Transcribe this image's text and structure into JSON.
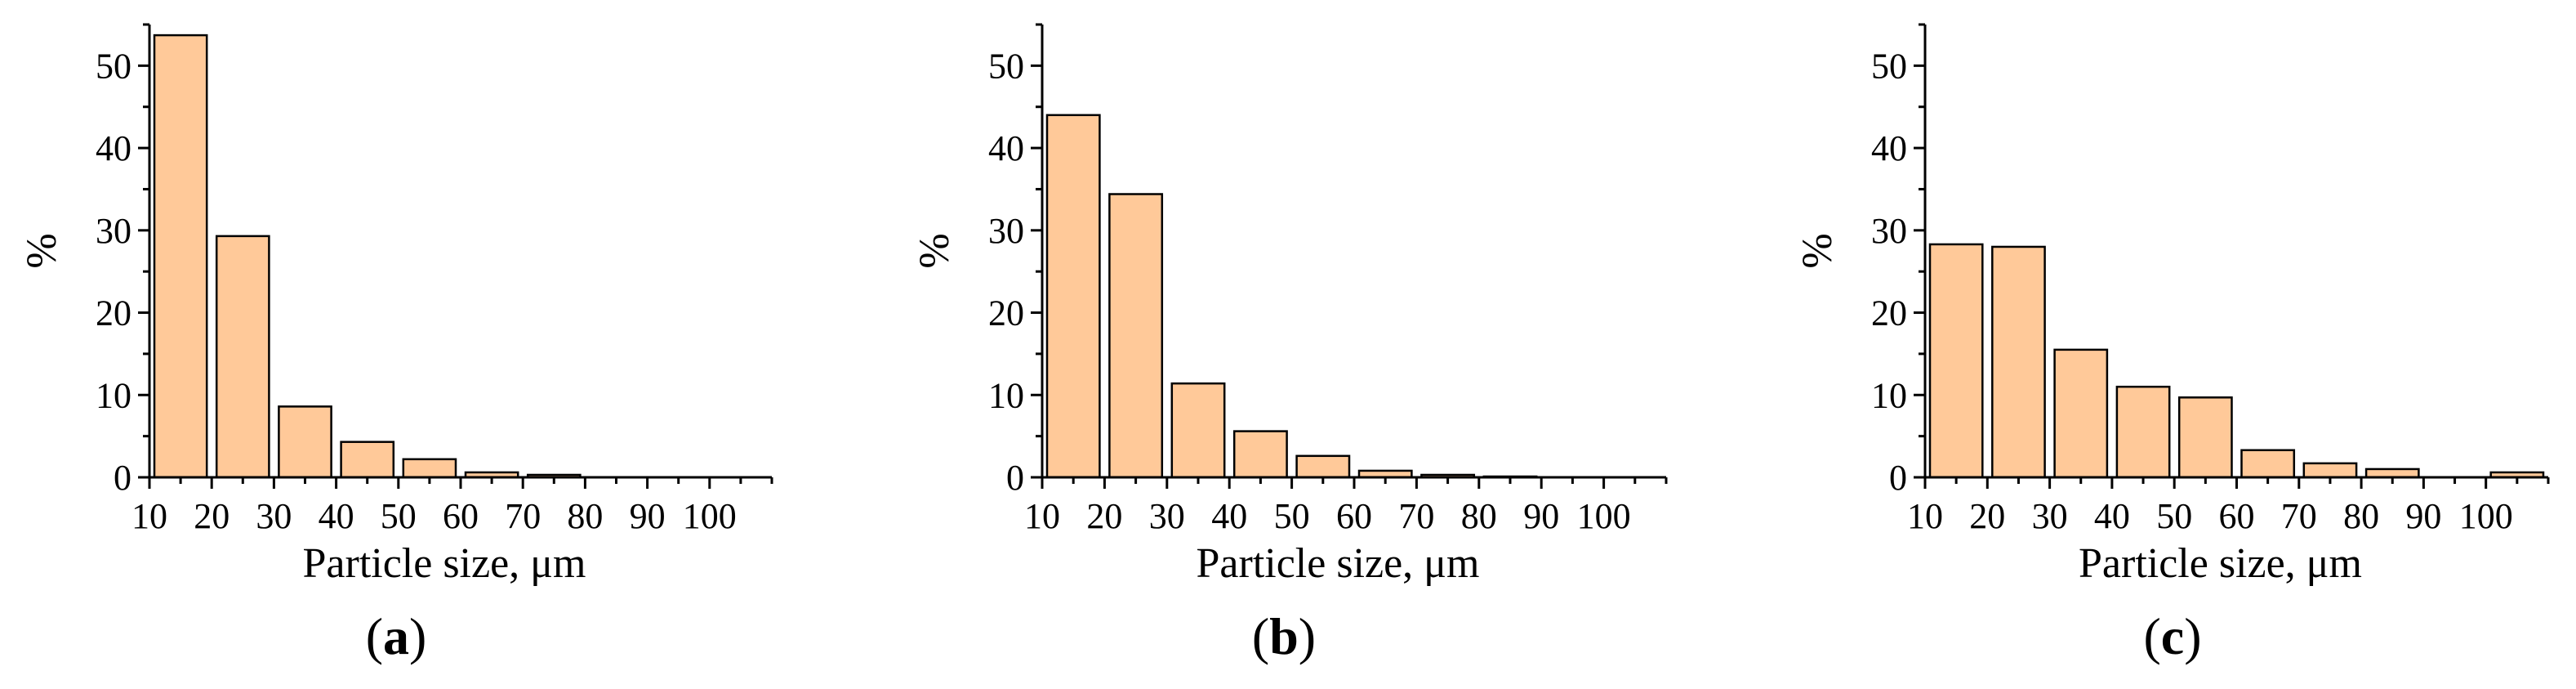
{
  "figure": {
    "bar_color": "#FFC999",
    "bar_stroke": "#000000"
  },
  "chart_data": [
    {
      "type": "bar",
      "panel": "a",
      "xlabel": "Particle size, μm",
      "ylabel": "%",
      "xlim": [
        10,
        110
      ],
      "ylim": [
        0,
        55
      ],
      "x_ticks": [
        10,
        20,
        30,
        40,
        50,
        60,
        70,
        80,
        90,
        100
      ],
      "y_ticks": [
        0,
        10,
        20,
        30,
        40,
        50
      ],
      "bins": [
        [
          10,
          20
        ],
        [
          20,
          30
        ],
        [
          30,
          40
        ],
        [
          40,
          50
        ],
        [
          50,
          60
        ],
        [
          60,
          70
        ],
        [
          70,
          80
        ]
      ],
      "values": [
        53.7,
        29.3,
        8.6,
        4.3,
        2.2,
        0.6,
        0.3
      ]
    },
    {
      "type": "bar",
      "panel": "b",
      "xlabel": "Particle size, μm",
      "ylabel": "%",
      "xlim": [
        10,
        110
      ],
      "ylim": [
        0,
        55
      ],
      "x_ticks": [
        10,
        20,
        30,
        40,
        50,
        60,
        70,
        80,
        90,
        100
      ],
      "y_ticks": [
        0,
        10,
        20,
        30,
        40,
        50
      ],
      "bins": [
        [
          10,
          20
        ],
        [
          20,
          30
        ],
        [
          30,
          40
        ],
        [
          40,
          50
        ],
        [
          50,
          60
        ],
        [
          60,
          70
        ],
        [
          70,
          80
        ],
        [
          80,
          90
        ]
      ],
      "values": [
        44.0,
        34.4,
        11.4,
        5.6,
        2.6,
        0.8,
        0.3,
        0.1
      ]
    },
    {
      "type": "bar",
      "panel": "c",
      "xlabel": "Particle size, μm",
      "ylabel": "%",
      "xlim": [
        10,
        110
      ],
      "ylim": [
        0,
        55
      ],
      "x_ticks": [
        10,
        20,
        30,
        40,
        50,
        60,
        70,
        80,
        90,
        100
      ],
      "y_ticks": [
        0,
        10,
        20,
        30,
        40,
        50
      ],
      "bins": [
        [
          10,
          20
        ],
        [
          20,
          30
        ],
        [
          30,
          40
        ],
        [
          40,
          50
        ],
        [
          50,
          60
        ],
        [
          60,
          70
        ],
        [
          70,
          80
        ],
        [
          80,
          90
        ],
        [
          100,
          110
        ]
      ],
      "values": [
        28.3,
        28.0,
        15.5,
        11.0,
        9.7,
        3.3,
        1.7,
        1.0,
        0.6
      ]
    }
  ]
}
